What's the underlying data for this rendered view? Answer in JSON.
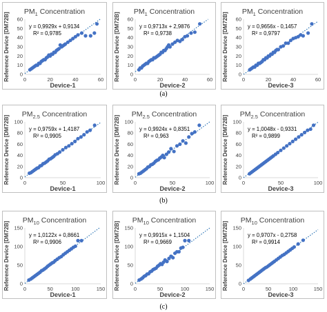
{
  "captions": [
    "(a)",
    "(b)",
    "(c)"
  ],
  "colors": {
    "point": "#4472c4",
    "trend": "#2e75b6",
    "axis": "#d9d9d9",
    "text": "#404040",
    "eq": "#000000"
  },
  "chart_data": [
    {
      "type": "scatter",
      "title": "PM1 Concentration",
      "title_base": "PM",
      "title_sub": "1",
      "title_tail": " Concentration",
      "xlabel": "Device-1",
      "ylabel": "Reference Device [DM72B]",
      "xlim": [
        0,
        60
      ],
      "ylim": [
        0,
        60
      ],
      "xticks": [
        0,
        20,
        40,
        60
      ],
      "yticks": [
        0,
        10,
        20,
        30,
        40,
        50,
        60
      ],
      "equation": "y = 0,9929x + 0,9134",
      "r2": "R² = 0,9785",
      "slope": 0.9929,
      "intercept": 0.9134,
      "x": [
        4,
        5,
        6,
        7,
        8,
        9,
        10,
        11,
        12,
        13,
        14,
        15,
        16,
        17,
        18,
        19,
        20,
        21,
        22,
        23,
        24,
        25,
        26,
        27,
        28,
        29,
        30,
        31,
        32,
        34,
        36,
        38,
        40,
        42,
        45,
        48,
        52,
        55,
        57
      ],
      "y": [
        5,
        6,
        7,
        8,
        9,
        10,
        10,
        12,
        12,
        14,
        15,
        16,
        16,
        18,
        19,
        21,
        20,
        22,
        22,
        24,
        24,
        26,
        27,
        28,
        32,
        30,
        31,
        32,
        33,
        35,
        37,
        39,
        41,
        43,
        45,
        42,
        42,
        45,
        55
      ]
    },
    {
      "type": "scatter",
      "title": "PM1 Concentration",
      "title_base": "PM",
      "title_sub": "1",
      "title_tail": " Concentration",
      "xlabel": "Device-2",
      "ylabel": "Reference Device [DM72B]",
      "xlim": [
        0,
        60
      ],
      "ylim": [
        0,
        60
      ],
      "xticks": [
        0,
        20,
        40,
        60
      ],
      "yticks": [
        0,
        10,
        20,
        30,
        40,
        50,
        60
      ],
      "equation": "y = 0,9713x + 2,9876",
      "r2": "R² = 0,9738",
      "slope": 0.9713,
      "intercept": 2.9876,
      "x": [
        3,
        4,
        5,
        6,
        7,
        8,
        9,
        10,
        11,
        12,
        13,
        14,
        15,
        16,
        17,
        18,
        19,
        20,
        21,
        22,
        23,
        24,
        25,
        26,
        27,
        28,
        30,
        32,
        34,
        36,
        38,
        40,
        42,
        45,
        48,
        52
      ],
      "y": [
        5,
        7,
        7,
        9,
        10,
        11,
        12,
        12,
        14,
        15,
        16,
        16,
        18,
        18,
        19,
        20,
        21,
        22,
        24,
        24,
        26,
        26,
        28,
        30,
        32,
        30,
        33,
        35,
        37,
        36,
        38,
        41,
        42,
        45,
        46,
        55
      ]
    },
    {
      "type": "scatter",
      "title": "PM1 Concentration",
      "title_base": "PM",
      "title_sub": "1",
      "title_tail": " Concentration",
      "xlabel": "Device-3",
      "ylabel": "Reference Device [DM72B]",
      "xlim": [
        0,
        60
      ],
      "ylim": [
        0,
        60
      ],
      "xticks": [
        0,
        20,
        40,
        60
      ],
      "yticks": [
        0,
        10,
        20,
        30,
        40,
        50,
        60
      ],
      "equation": "y = 0,9656x - 0,1457",
      "r2": "R² = 0,9797",
      "slope": 0.9656,
      "intercept": -0.1457,
      "x": [
        5,
        6,
        7,
        8,
        9,
        10,
        11,
        12,
        13,
        14,
        15,
        16,
        17,
        18,
        19,
        20,
        21,
        22,
        23,
        24,
        25,
        26,
        27,
        28,
        30,
        32,
        34,
        36,
        38,
        40,
        42,
        44,
        46,
        48,
        52,
        55
      ],
      "y": [
        5,
        6,
        7,
        8,
        8,
        10,
        10,
        12,
        12,
        13,
        14,
        16,
        16,
        18,
        18,
        20,
        20,
        22,
        22,
        24,
        24,
        26,
        27,
        27,
        30,
        31,
        34,
        34,
        37,
        39,
        40,
        41,
        43,
        42,
        45,
        55
      ]
    },
    {
      "type": "scatter",
      "title": "PM2.5 Concentration",
      "title_base": "PM",
      "title_sub": "2.5",
      "title_tail": " Concentration",
      "xlabel": "Device-1",
      "ylabel": "Reference Device [DM72B]",
      "xlim": [
        0,
        100
      ],
      "ylim": [
        0,
        100
      ],
      "xticks": [
        0,
        50,
        100
      ],
      "yticks": [
        0,
        20,
        40,
        60,
        80,
        100
      ],
      "equation": "y = 0,9759x + 1,4187",
      "r2": "R² = 0,9905",
      "slope": 0.9759,
      "intercept": 1.4187,
      "x": [
        6,
        8,
        10,
        12,
        14,
        16,
        18,
        20,
        22,
        24,
        26,
        28,
        30,
        32,
        34,
        36,
        38,
        40,
        43,
        46,
        50,
        54,
        58,
        62,
        66,
        70,
        74,
        78,
        82,
        86,
        92
      ],
      "y": [
        8,
        9,
        11,
        13,
        15,
        17,
        18,
        21,
        22,
        25,
        26,
        28,
        30,
        33,
        34,
        36,
        38,
        41,
        43,
        46,
        50,
        54,
        57,
        61,
        65,
        70,
        73,
        77,
        82,
        85,
        94
      ]
    },
    {
      "type": "scatter",
      "title": "PM2.5 Concentration",
      "title_base": "PM",
      "title_sub": "2.5",
      "title_tail": " Concentration",
      "xlabel": "Device-2",
      "ylabel": "Reference Device [DM72B]",
      "xlim": [
        0,
        100
      ],
      "ylim": [
        0,
        100
      ],
      "xticks": [
        0,
        50,
        100
      ],
      "yticks": [
        0,
        20,
        40,
        60,
        80,
        100
      ],
      "equation": "y = 0,9924x + 0,8351",
      "r2": "R² = 0,963",
      "slope": 0.9924,
      "intercept": 0.8351,
      "x": [
        5,
        7,
        9,
        11,
        13,
        15,
        17,
        19,
        21,
        23,
        25,
        27,
        29,
        31,
        33,
        35,
        37,
        39,
        42,
        45,
        48,
        52,
        56,
        60,
        64,
        68,
        72,
        76,
        80,
        86
      ],
      "y": [
        7,
        8,
        10,
        12,
        14,
        16,
        19,
        20,
        23,
        24,
        26,
        29,
        31,
        32,
        35,
        37,
        40,
        36,
        42,
        46,
        52,
        47,
        57,
        60,
        66,
        62,
        73,
        79,
        82,
        94
      ]
    },
    {
      "type": "scatter",
      "title": "PM2.5 Concentration",
      "title_base": "PM",
      "title_sub": "2.5",
      "title_tail": " Concentration",
      "xlabel": "Device-3",
      "ylabel": "Reference Device [DM72B]",
      "xlim": [
        0,
        100
      ],
      "ylim": [
        0,
        100
      ],
      "xticks": [
        0,
        50,
        100
      ],
      "yticks": [
        0,
        20,
        40,
        60,
        80,
        100
      ],
      "equation": "y = 1,0048x - 0,9331",
      "r2": "R² = 0,9899",
      "slope": 1.0048,
      "intercept": -0.9331,
      "x": [
        8,
        10,
        12,
        14,
        16,
        18,
        20,
        22,
        24,
        26,
        28,
        30,
        32,
        34,
        36,
        38,
        40,
        43,
        46,
        50,
        54,
        58,
        62,
        66,
        70,
        74,
        78,
        82,
        86,
        90,
        94
      ],
      "y": [
        7,
        9,
        11,
        13,
        15,
        17,
        19,
        21,
        23,
        25,
        27,
        29,
        31,
        33,
        35,
        37,
        39,
        42,
        45,
        49,
        53,
        57,
        61,
        65,
        69,
        73,
        77,
        81,
        85,
        87,
        94
      ]
    },
    {
      "type": "scatter",
      "title": "PM10 Concentration",
      "title_base": "PM",
      "title_sub": "10",
      "title_tail": " Concentration",
      "xlabel": "Device-1",
      "ylabel": "Reference Device [DM72B]",
      "xlim": [
        0,
        150
      ],
      "ylim": [
        0,
        150
      ],
      "xticks": [
        0,
        50,
        100,
        150
      ],
      "yticks": [
        0,
        50,
        100,
        150
      ],
      "equation": "y = 1,0122x + 0,8661",
      "r2": "R² = 0,9906",
      "slope": 1.0122,
      "intercept": 0.8661,
      "x": [
        8,
        12,
        15,
        18,
        21,
        24,
        27,
        30,
        33,
        36,
        39,
        42,
        45,
        48,
        51,
        54,
        57,
        60,
        64,
        68,
        72,
        76,
        80,
        84,
        88,
        92,
        96,
        100,
        105,
        112
      ],
      "y": [
        10,
        13,
        16,
        19,
        22,
        25,
        28,
        31,
        35,
        37,
        40,
        43,
        47,
        50,
        53,
        56,
        58,
        62,
        66,
        70,
        73,
        78,
        82,
        86,
        90,
        94,
        98,
        101,
        116,
        116
      ]
    },
    {
      "type": "scatter",
      "title": "PM10 Concentration",
      "title_base": "PM",
      "title_sub": "10",
      "title_tail": " Concentration",
      "xlabel": "Device-2",
      "ylabel": "Reference Device [DM72B]",
      "xlim": [
        0,
        150
      ],
      "ylim": [
        0,
        150
      ],
      "xticks": [
        0,
        50,
        100,
        150
      ],
      "yticks": [
        0,
        50,
        100,
        150
      ],
      "equation": "y = 0,9915x + 1,1504",
      "r2": "R² = 0,9669",
      "slope": 0.9915,
      "intercept": 1.1504,
      "x": [
        8,
        12,
        15,
        18,
        21,
        24,
        27,
        30,
        33,
        36,
        39,
        42,
        45,
        48,
        51,
        54,
        57,
        60,
        64,
        68,
        72,
        76,
        80,
        84,
        88,
        92,
        96,
        100,
        108
      ],
      "y": [
        10,
        13,
        16,
        20,
        22,
        26,
        27,
        32,
        34,
        38,
        40,
        42,
        47,
        50,
        54,
        52,
        58,
        64,
        60,
        68,
        74,
        70,
        82,
        86,
        86,
        96,
        98,
        116,
        116
      ]
    },
    {
      "type": "scatter",
      "title": "PM10 Concentration",
      "title_base": "PM",
      "title_sub": "10",
      "title_tail": " Concentration",
      "xlabel": "Device-3",
      "ylabel": "Reference Device [DM72B]",
      "xlim": [
        0,
        150
      ],
      "ylim": [
        0,
        150
      ],
      "xticks": [
        0,
        50,
        100,
        150
      ],
      "yticks": [
        0,
        50,
        100,
        150
      ],
      "equation": "y = 0,9707x - 0,2758",
      "r2": "R² = 0,9914",
      "slope": 0.9707,
      "intercept": -0.2758,
      "x": [
        10,
        14,
        17,
        20,
        23,
        26,
        29,
        32,
        35,
        38,
        41,
        44,
        47,
        50,
        53,
        56,
        59,
        62,
        66,
        70,
        74,
        78,
        82,
        86,
        90,
        94,
        98,
        102,
        110,
        120
      ],
      "y": [
        9,
        13,
        16,
        19,
        22,
        25,
        28,
        31,
        34,
        37,
        40,
        43,
        45,
        48,
        51,
        54,
        57,
        60,
        64,
        68,
        72,
        76,
        79,
        83,
        87,
        91,
        95,
        99,
        107,
        117
      ]
    }
  ]
}
